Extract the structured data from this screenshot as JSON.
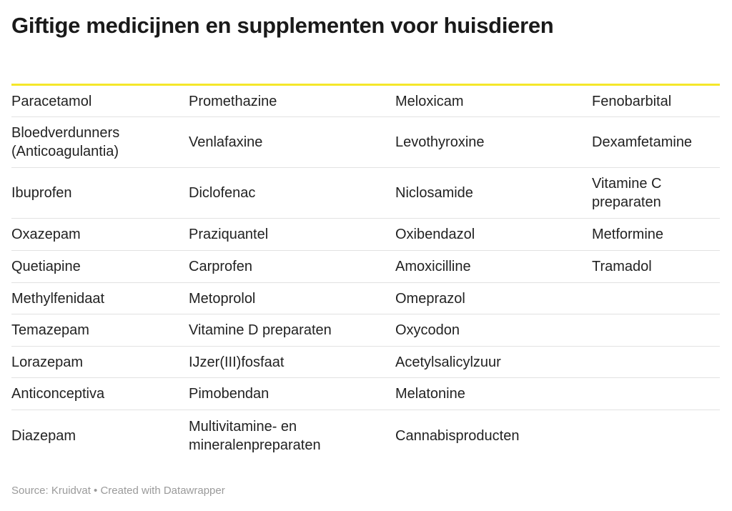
{
  "title": "Giftige medicijnen en supplementen voor huisdieren",
  "accent_color": "#f5e72a",
  "table": {
    "rows": [
      [
        "Paracetamol",
        "Promethazine",
        "Meloxicam",
        "Fenobarbital"
      ],
      [
        "Bloedverdunners (Anticoagulantia)",
        "Venlafaxine",
        "Levothyroxine",
        "Dexamfetamine"
      ],
      [
        "Ibuprofen",
        "Diclofenac",
        "Niclosamide",
        "Vitamine C preparaten"
      ],
      [
        "Oxazepam",
        "Praziquantel",
        "Oxibendazol",
        "Metformine"
      ],
      [
        "Quetiapine",
        "Carprofen",
        "Amoxicilline",
        "Tramadol"
      ],
      [
        "Methylfenidaat",
        "Metoprolol",
        "Omeprazol",
        ""
      ],
      [
        "Temazepam",
        "Vitamine D preparaten",
        "Oxycodon",
        ""
      ],
      [
        "Lorazepam",
        "IJzer(III)fosfaat",
        "Acetylsalicylzuur",
        ""
      ],
      [
        "Anticonceptiva",
        "Pimobendan",
        "Melatonine",
        ""
      ],
      [
        "Diazepam",
        "Multivitamine- en mineralenpreparaten",
        "Cannabisproducten",
        ""
      ]
    ]
  },
  "footer": {
    "text": "Source: Kruidvat • Created with Datawrapper"
  }
}
